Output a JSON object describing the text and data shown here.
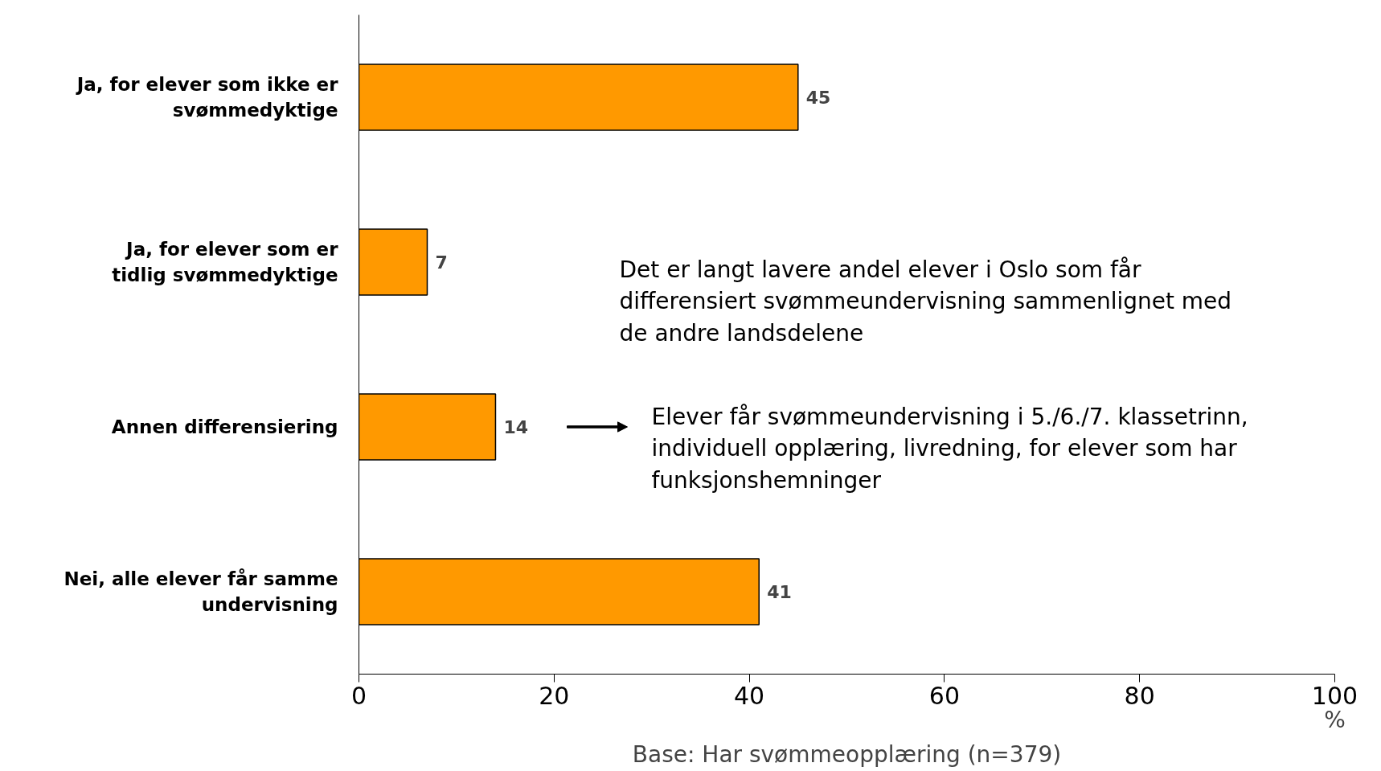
{
  "chart_data": {
    "type": "bar",
    "orientation": "horizontal",
    "categories": [
      "Ja, for elever som ikke er svømmedyktige",
      "Ja, for elever som er tidlig svømmedyktige",
      "Annen differensiering",
      "Nei, alle elever får samme undervisning"
    ],
    "values": [
      45,
      7,
      14,
      41
    ],
    "color": "#ff9900",
    "xlim": [
      0,
      100
    ],
    "xticks": [
      0,
      20,
      40,
      60,
      80,
      100
    ],
    "xlabel": "%",
    "data_labels": true,
    "grid": false,
    "annotations": [
      "Det er langt lavere andel elever i Oslo som får differensiert svømmeundervisning sammenlignet med de andre landsdelene",
      "Elever får svømmeundervisning i 5./6./7. klassetrinn, individuell opplæring, livredning, for elever som har funksjonshemninger",
      "Base: Har svømmeopplæring (n=379)"
    ]
  }
}
